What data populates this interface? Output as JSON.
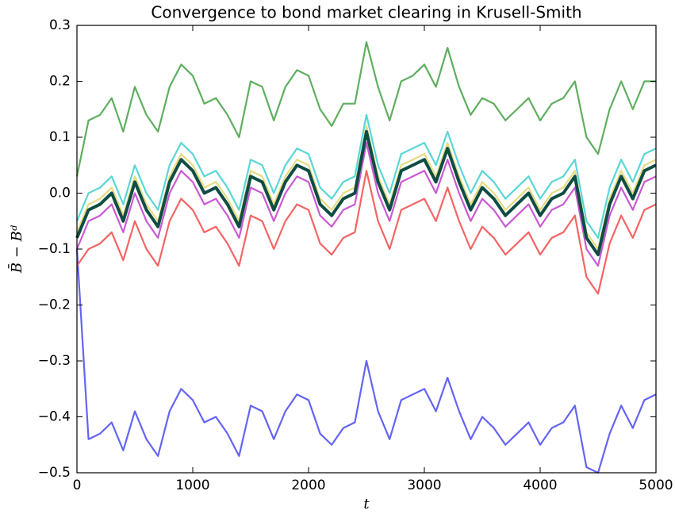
{
  "chart_data": {
    "type": "line",
    "title": "Convergence to bond market clearing in Krusell-Smith",
    "xlabel": "t",
    "ylabel": "B̄ − Bᵈ",
    "x": [
      0,
      100,
      200,
      300,
      400,
      500,
      600,
      700,
      800,
      900,
      1000,
      1100,
      1200,
      1300,
      1400,
      1500,
      1600,
      1700,
      1800,
      1900,
      2000,
      2100,
      2200,
      2300,
      2400,
      2500,
      2600,
      2700,
      2800,
      2900,
      3000,
      3100,
      3200,
      3300,
      3400,
      3500,
      3600,
      3700,
      3800,
      3900,
      4000,
      4100,
      4200,
      4300,
      4400,
      4500,
      4600,
      4700,
      4800,
      4900,
      5000
    ],
    "xlim": [
      0,
      5000
    ],
    "xticks": [
      0,
      1000,
      2000,
      3000,
      4000,
      5000
    ],
    "ylim": [
      -0.5,
      0.3
    ],
    "yticks": [
      {
        "value": -0.5,
        "label": "−0.5"
      },
      {
        "value": -0.4,
        "label": "−0.4"
      },
      {
        "value": -0.3,
        "label": "−0.3"
      },
      {
        "value": -0.2,
        "label": "−0.2"
      },
      {
        "value": -0.1,
        "label": "−0.1"
      },
      {
        "value": 0,
        "label": "0.0"
      },
      0.1,
      0.2,
      0.3
    ],
    "series": [
      {
        "color": "#6464f5",
        "linewidth": 2.2,
        "values": [
          -0.1,
          -0.44,
          -0.43,
          -0.41,
          -0.46,
          -0.39,
          -0.44,
          -0.47,
          -0.39,
          -0.35,
          -0.37,
          -0.41,
          -0.4,
          -0.43,
          -0.47,
          -0.38,
          -0.39,
          -0.44,
          -0.39,
          -0.36,
          -0.37,
          -0.43,
          -0.45,
          -0.42,
          -0.41,
          -0.3,
          -0.39,
          -0.44,
          -0.37,
          -0.36,
          -0.35,
          -0.39,
          -0.33,
          -0.39,
          -0.44,
          -0.4,
          -0.42,
          -0.45,
          -0.43,
          -0.41,
          -0.45,
          -0.42,
          -0.41,
          -0.38,
          -0.49,
          -0.5,
          -0.43,
          -0.38,
          -0.42,
          -0.37,
          -0.36
        ]
      },
      {
        "color": "#f56464",
        "linewidth": 2.2,
        "values": [
          -0.13,
          -0.1,
          -0.09,
          -0.07,
          -0.12,
          -0.05,
          -0.1,
          -0.13,
          -0.05,
          -0.01,
          -0.03,
          -0.07,
          -0.06,
          -0.09,
          -0.13,
          -0.04,
          -0.05,
          -0.1,
          -0.05,
          -0.02,
          -0.03,
          -0.09,
          -0.11,
          -0.08,
          -0.07,
          0.04,
          -0.05,
          -0.1,
          -0.03,
          -0.02,
          -0.01,
          -0.05,
          0.01,
          -0.05,
          -0.1,
          -0.06,
          -0.08,
          -0.11,
          -0.09,
          -0.07,
          -0.11,
          -0.08,
          -0.07,
          -0.04,
          -0.15,
          -0.18,
          -0.09,
          -0.04,
          -0.08,
          -0.03,
          -0.02
        ]
      },
      {
        "color": "#c95ad2",
        "linewidth": 2.2,
        "values": [
          -0.1,
          -0.05,
          -0.04,
          -0.02,
          -0.07,
          0.0,
          -0.05,
          -0.08,
          0.0,
          0.04,
          0.02,
          -0.02,
          -0.01,
          -0.04,
          -0.08,
          0.01,
          0.0,
          -0.05,
          0.0,
          0.03,
          0.02,
          -0.04,
          -0.06,
          -0.03,
          -0.02,
          0.09,
          0.0,
          -0.05,
          0.02,
          0.03,
          0.04,
          0.0,
          0.06,
          0.0,
          -0.05,
          -0.01,
          -0.03,
          -0.06,
          -0.04,
          -0.02,
          -0.06,
          -0.03,
          -0.02,
          0.01,
          -0.1,
          -0.13,
          -0.04,
          0.01,
          -0.03,
          0.02,
          0.03
        ]
      },
      {
        "color": "#5ad6d6",
        "linewidth": 2.2,
        "values": [
          -0.05,
          0.0,
          0.01,
          0.03,
          -0.02,
          0.05,
          0.0,
          -0.03,
          0.05,
          0.09,
          0.07,
          0.03,
          0.04,
          0.01,
          -0.03,
          0.06,
          0.05,
          0.0,
          0.05,
          0.08,
          0.07,
          0.01,
          -0.01,
          0.02,
          0.03,
          0.14,
          0.05,
          0.0,
          0.07,
          0.08,
          0.09,
          0.05,
          0.11,
          0.05,
          0.0,
          0.04,
          0.02,
          -0.01,
          0.01,
          0.03,
          -0.01,
          0.02,
          0.03,
          0.06,
          -0.05,
          -0.08,
          0.01,
          0.06,
          0.02,
          0.07,
          0.08
        ]
      },
      {
        "color": "#e6dc82",
        "linewidth": 2.2,
        "values": [
          -0.07,
          -0.02,
          -0.01,
          0.01,
          -0.04,
          0.03,
          -0.02,
          -0.05,
          0.03,
          0.07,
          0.05,
          0.01,
          0.02,
          -0.01,
          -0.05,
          0.04,
          0.03,
          -0.02,
          0.03,
          0.06,
          0.05,
          -0.01,
          -0.03,
          0.0,
          0.01,
          0.12,
          0.03,
          -0.02,
          0.05,
          0.06,
          0.07,
          0.03,
          0.09,
          0.03,
          -0.02,
          0.02,
          0.0,
          -0.03,
          -0.01,
          0.01,
          -0.03,
          0.0,
          0.01,
          0.04,
          -0.07,
          -0.1,
          -0.01,
          0.04,
          0.0,
          0.05,
          0.06
        ]
      },
      {
        "color": "#5fae5f",
        "linewidth": 2.2,
        "values": [
          0.03,
          0.13,
          0.14,
          0.17,
          0.11,
          0.19,
          0.14,
          0.11,
          0.19,
          0.23,
          0.21,
          0.16,
          0.17,
          0.14,
          0.1,
          0.2,
          0.19,
          0.13,
          0.19,
          0.22,
          0.21,
          0.15,
          0.12,
          0.16,
          0.16,
          0.27,
          0.19,
          0.13,
          0.2,
          0.21,
          0.23,
          0.19,
          0.26,
          0.19,
          0.14,
          0.17,
          0.16,
          0.13,
          0.15,
          0.17,
          0.13,
          0.16,
          0.17,
          0.2,
          0.1,
          0.07,
          0.15,
          0.2,
          0.15,
          0.2,
          0.2
        ]
      },
      {
        "color": "#0f4d44",
        "linewidth": 4,
        "values": [
          -0.08,
          -0.03,
          -0.02,
          0.0,
          -0.05,
          0.02,
          -0.03,
          -0.06,
          0.02,
          0.06,
          0.04,
          0.0,
          0.01,
          -0.02,
          -0.06,
          0.03,
          0.02,
          -0.03,
          0.02,
          0.05,
          0.04,
          -0.02,
          -0.04,
          -0.01,
          0.0,
          0.11,
          0.02,
          -0.03,
          0.04,
          0.05,
          0.06,
          0.02,
          0.08,
          0.02,
          -0.03,
          0.01,
          -0.01,
          -0.04,
          -0.02,
          0.0,
          -0.04,
          -0.01,
          0.0,
          0.03,
          -0.08,
          -0.11,
          -0.02,
          0.03,
          -0.01,
          0.04,
          0.05
        ]
      }
    ]
  }
}
